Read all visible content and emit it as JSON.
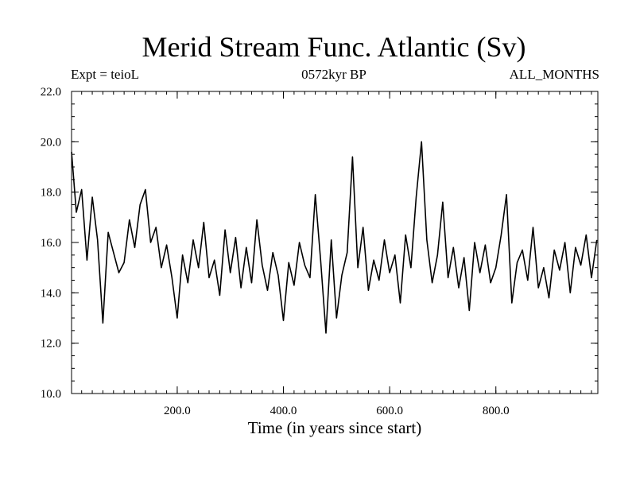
{
  "chart_data": {
    "type": "line",
    "title": "Merid Stream Func. Atlantic (Sv)",
    "header_left": "Expt = teioL",
    "header_center": "0572kyr BP",
    "header_right": "ALL_MONTHS",
    "xlabel": "Time (in years since start)",
    "ylabel": "",
    "xlim": [
      1,
      992
    ],
    "ylim": [
      10,
      22
    ],
    "x_ticks": [
      200,
      400,
      600,
      800
    ],
    "x_tick_labels": [
      "200.0",
      "400.0",
      "600.0",
      "800.0"
    ],
    "y_ticks": [
      10,
      12,
      14,
      16,
      18,
      20,
      22
    ],
    "y_tick_labels": [
      "10.0",
      "12.0",
      "14.0",
      "16.0",
      "18.0",
      "20.0",
      "22.0"
    ],
    "grid": false,
    "line_color": "#000000",
    "series": [
      {
        "x": [
          1,
          10,
          20,
          30,
          40,
          50,
          60,
          70,
          80,
          90,
          100,
          110,
          120,
          130,
          140,
          150,
          160,
          170,
          180,
          190,
          200,
          210,
          220,
          230,
          240,
          250,
          260,
          270,
          280,
          290,
          300,
          310,
          320,
          330,
          340,
          350,
          360,
          370,
          380,
          390,
          400,
          410,
          420,
          430,
          440,
          450,
          460,
          470,
          480,
          490,
          500,
          510,
          520,
          530,
          540,
          550,
          560,
          570,
          580,
          590,
          600,
          610,
          620,
          630,
          640,
          650,
          660,
          670,
          680,
          690,
          700,
          710,
          720,
          730,
          740,
          750,
          760,
          770,
          780,
          790,
          800,
          810,
          820,
          830,
          840,
          850,
          860,
          870,
          880,
          890,
          900,
          910,
          920,
          930,
          940,
          950,
          960,
          970,
          980,
          990
        ],
        "values": [
          19.6,
          17.2,
          18.1,
          15.3,
          17.8,
          16.1,
          12.8,
          16.4,
          15.6,
          14.8,
          15.2,
          16.9,
          15.8,
          17.5,
          18.1,
          16.0,
          16.6,
          15.0,
          15.9,
          14.6,
          13.0,
          15.5,
          14.4,
          16.1,
          15.0,
          16.8,
          14.6,
          15.3,
          13.9,
          16.5,
          14.8,
          16.2,
          14.2,
          15.8,
          14.4,
          16.9,
          15.1,
          14.1,
          15.6,
          14.7,
          12.9,
          15.2,
          14.3,
          16.0,
          15.1,
          14.6,
          17.9,
          15.3,
          12.4,
          16.1,
          13.0,
          14.7,
          15.6,
          19.4,
          15.0,
          16.6,
          14.1,
          15.3,
          14.5,
          16.1,
          14.8,
          15.5,
          13.6,
          16.3,
          15.0,
          17.8,
          20.0,
          16.1,
          14.4,
          15.5,
          17.6,
          14.6,
          15.8,
          14.2,
          15.4,
          13.3,
          16.0,
          14.8,
          15.9,
          14.4,
          15.0,
          16.3,
          17.9,
          13.6,
          15.2,
          15.7,
          14.5,
          16.6,
          14.2,
          15.0,
          13.8,
          15.7,
          14.9,
          16.0,
          14.0,
          15.8,
          15.1,
          16.3,
          14.6,
          16.1
        ]
      }
    ]
  }
}
